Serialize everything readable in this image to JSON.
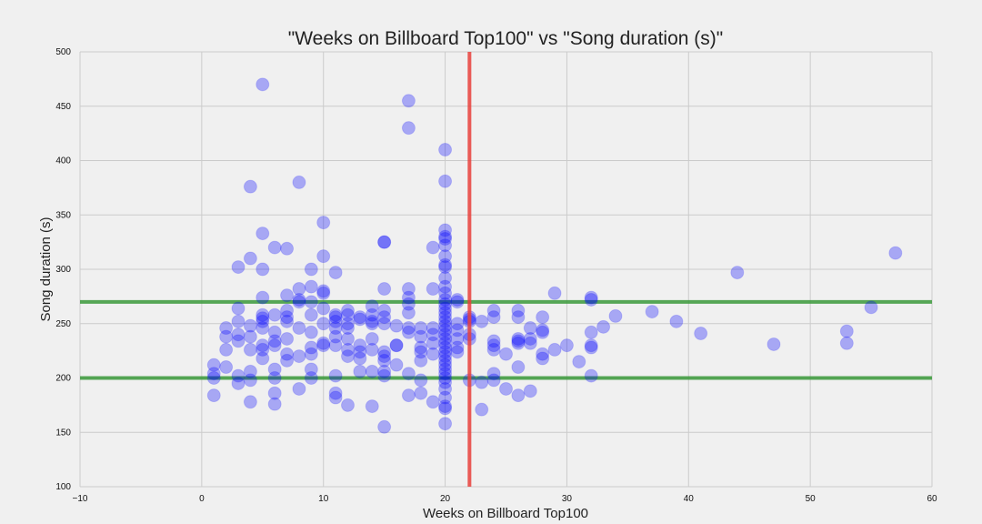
{
  "chart_data": {
    "type": "scatter",
    "title": "\"Weeks on Billboard Top100\" vs \"Song duration (s)\"",
    "xlabel": "Weeks on Billboard Top100",
    "ylabel": "Song duration (s)",
    "xlim": [
      -10,
      60
    ],
    "ylim": [
      100,
      500
    ],
    "xticks": [
      -10,
      0,
      10,
      20,
      30,
      40,
      50,
      60
    ],
    "yticks": [
      100,
      150,
      200,
      250,
      300,
      350,
      400,
      450,
      500
    ],
    "grid": true,
    "colors": {
      "background": "#f0f0f0",
      "points": "#0000ff",
      "vline": "#e8413c",
      "hlines": "#3a9a3a",
      "grid": "#cbcbcb"
    },
    "reference_lines": {
      "vertical_x": 22,
      "horizontal_y": [
        200,
        270
      ]
    },
    "points": [
      [
        1,
        184
      ],
      [
        1,
        200
      ],
      [
        1,
        204
      ],
      [
        1,
        212
      ],
      [
        2,
        210
      ],
      [
        2,
        226
      ],
      [
        2,
        238
      ],
      [
        2,
        246
      ],
      [
        3,
        195
      ],
      [
        3,
        202
      ],
      [
        3,
        234
      ],
      [
        3,
        240
      ],
      [
        3,
        252
      ],
      [
        3,
        264
      ],
      [
        3,
        302
      ],
      [
        4,
        178
      ],
      [
        4,
        198
      ],
      [
        4,
        206
      ],
      [
        4,
        226
      ],
      [
        4,
        238
      ],
      [
        4,
        248
      ],
      [
        4,
        310
      ],
      [
        4,
        376
      ],
      [
        5,
        218
      ],
      [
        5,
        226
      ],
      [
        5,
        230
      ],
      [
        5,
        246
      ],
      [
        5,
        252
      ],
      [
        5,
        255
      ],
      [
        5,
        258
      ],
      [
        5,
        274
      ],
      [
        5,
        300
      ],
      [
        5,
        333
      ],
      [
        5,
        470
      ],
      [
        6,
        176
      ],
      [
        6,
        186
      ],
      [
        6,
        200
      ],
      [
        6,
        208
      ],
      [
        6,
        230
      ],
      [
        6,
        234
      ],
      [
        6,
        242
      ],
      [
        6,
        258
      ],
      [
        6,
        320
      ],
      [
        7,
        216
      ],
      [
        7,
        222
      ],
      [
        7,
        236
      ],
      [
        7,
        252
      ],
      [
        7,
        256
      ],
      [
        7,
        262
      ],
      [
        7,
        276
      ],
      [
        7,
        319
      ],
      [
        8,
        190
      ],
      [
        8,
        220
      ],
      [
        8,
        246
      ],
      [
        8,
        270
      ],
      [
        8,
        272
      ],
      [
        8,
        282
      ],
      [
        8,
        380
      ],
      [
        9,
        200
      ],
      [
        9,
        208
      ],
      [
        9,
        222
      ],
      [
        9,
        228
      ],
      [
        9,
        242
      ],
      [
        9,
        258
      ],
      [
        9,
        270
      ],
      [
        9,
        284
      ],
      [
        9,
        300
      ],
      [
        10,
        230
      ],
      [
        10,
        232
      ],
      [
        10,
        250
      ],
      [
        10,
        264
      ],
      [
        10,
        278
      ],
      [
        10,
        280
      ],
      [
        10,
        312
      ],
      [
        10,
        343
      ],
      [
        11,
        182
      ],
      [
        11,
        186
      ],
      [
        11,
        202
      ],
      [
        11,
        230
      ],
      [
        11,
        238
      ],
      [
        11,
        246
      ],
      [
        11,
        252
      ],
      [
        11,
        256
      ],
      [
        11,
        258
      ],
      [
        11,
        297
      ],
      [
        12,
        175
      ],
      [
        12,
        220
      ],
      [
        12,
        226
      ],
      [
        12,
        236
      ],
      [
        12,
        246
      ],
      [
        12,
        250
      ],
      [
        12,
        258
      ],
      [
        12,
        262
      ],
      [
        13,
        206
      ],
      [
        13,
        218
      ],
      [
        13,
        224
      ],
      [
        13,
        230
      ],
      [
        13,
        254
      ],
      [
        13,
        256
      ],
      [
        14,
        174
      ],
      [
        14,
        206
      ],
      [
        14,
        226
      ],
      [
        14,
        236
      ],
      [
        14,
        250
      ],
      [
        14,
        252
      ],
      [
        14,
        258
      ],
      [
        14,
        266
      ],
      [
        15,
        155
      ],
      [
        15,
        202
      ],
      [
        15,
        206
      ],
      [
        15,
        216
      ],
      [
        15,
        220
      ],
      [
        15,
        224
      ],
      [
        15,
        250
      ],
      [
        15,
        256
      ],
      [
        15,
        262
      ],
      [
        15,
        282
      ],
      [
        15,
        325
      ],
      [
        15,
        325
      ],
      [
        16,
        212
      ],
      [
        16,
        230
      ],
      [
        16,
        230
      ],
      [
        16,
        248
      ],
      [
        17,
        184
      ],
      [
        17,
        204
      ],
      [
        17,
        242
      ],
      [
        17,
        246
      ],
      [
        17,
        260
      ],
      [
        17,
        268
      ],
      [
        17,
        274
      ],
      [
        17,
        282
      ],
      [
        17,
        430
      ],
      [
        17,
        455
      ],
      [
        18,
        186
      ],
      [
        18,
        198
      ],
      [
        18,
        216
      ],
      [
        18,
        224
      ],
      [
        18,
        228
      ],
      [
        18,
        238
      ],
      [
        18,
        246
      ],
      [
        19,
        178
      ],
      [
        19,
        222
      ],
      [
        19,
        232
      ],
      [
        19,
        240
      ],
      [
        19,
        246
      ],
      [
        19,
        282
      ],
      [
        19,
        320
      ],
      [
        20,
        158
      ],
      [
        20,
        172
      ],
      [
        20,
        174
      ],
      [
        20,
        182
      ],
      [
        20,
        190
      ],
      [
        20,
        196
      ],
      [
        20,
        200
      ],
      [
        20,
        204
      ],
      [
        20,
        208
      ],
      [
        20,
        212
      ],
      [
        20,
        216
      ],
      [
        20,
        220
      ],
      [
        20,
        224
      ],
      [
        20,
        228
      ],
      [
        20,
        232
      ],
      [
        20,
        236
      ],
      [
        20,
        240
      ],
      [
        20,
        244
      ],
      [
        20,
        248
      ],
      [
        20,
        252
      ],
      [
        20,
        256
      ],
      [
        20,
        260
      ],
      [
        20,
        264
      ],
      [
        20,
        268
      ],
      [
        20,
        272
      ],
      [
        20,
        278
      ],
      [
        20,
        284
      ],
      [
        20,
        292
      ],
      [
        20,
        302
      ],
      [
        20,
        304
      ],
      [
        20,
        312
      ],
      [
        20,
        322
      ],
      [
        20,
        328
      ],
      [
        20,
        330
      ],
      [
        20,
        336
      ],
      [
        20,
        381
      ],
      [
        20,
        410
      ],
      [
        21,
        224
      ],
      [
        21,
        228
      ],
      [
        21,
        236
      ],
      [
        21,
        244
      ],
      [
        21,
        250
      ],
      [
        21,
        270
      ],
      [
        21,
        272
      ],
      [
        22,
        198
      ],
      [
        22,
        236
      ],
      [
        22,
        240
      ],
      [
        22,
        252
      ],
      [
        22,
        254
      ],
      [
        22,
        256
      ],
      [
        23,
        171
      ],
      [
        23,
        196
      ],
      [
        23,
        252
      ],
      [
        24,
        198
      ],
      [
        24,
        204
      ],
      [
        24,
        226
      ],
      [
        24,
        230
      ],
      [
        24,
        234
      ],
      [
        24,
        256
      ],
      [
        24,
        262
      ],
      [
        25,
        190
      ],
      [
        25,
        222
      ],
      [
        26,
        184
      ],
      [
        26,
        210
      ],
      [
        26,
        232
      ],
      [
        26,
        234
      ],
      [
        26,
        236
      ],
      [
        26,
        256
      ],
      [
        26,
        262
      ],
      [
        27,
        188
      ],
      [
        27,
        232
      ],
      [
        27,
        236
      ],
      [
        27,
        246
      ],
      [
        28,
        218
      ],
      [
        28,
        222
      ],
      [
        28,
        242
      ],
      [
        28,
        244
      ],
      [
        28,
        256
      ],
      [
        29,
        226
      ],
      [
        29,
        278
      ],
      [
        30,
        230
      ],
      [
        31,
        215
      ],
      [
        32,
        202
      ],
      [
        32,
        228
      ],
      [
        32,
        230
      ],
      [
        32,
        242
      ],
      [
        32,
        272
      ],
      [
        32,
        274
      ],
      [
        33,
        247
      ],
      [
        34,
        257
      ],
      [
        37,
        261
      ],
      [
        39,
        252
      ],
      [
        41,
        241
      ],
      [
        44,
        297
      ],
      [
        47,
        231
      ],
      [
        53,
        232
      ],
      [
        53,
        243
      ],
      [
        55,
        265
      ],
      [
        57,
        315
      ]
    ]
  }
}
